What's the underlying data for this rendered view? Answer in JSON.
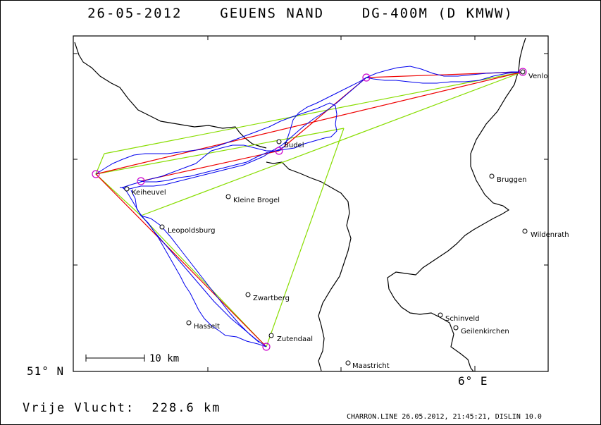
{
  "title": "26-05-2012    GEUENS NAND    DG-400M (D KMWW)",
  "axes": {
    "lat_label": "51° N",
    "lon_label": "6° E"
  },
  "scale_bar": {
    "label": "10 km"
  },
  "flight": {
    "label": "Vrije Vlucht:",
    "distance": "228.6 km"
  },
  "credit": "CHARRON.LINE 26.05.2012, 21:45:21, DISLIN 10.0",
  "places": [
    {
      "name": "Venlo"
    },
    {
      "name": "Budel"
    },
    {
      "name": "Bruggen"
    },
    {
      "name": "Keiheuvel"
    },
    {
      "name": "Kleine Brogel"
    },
    {
      "name": "Leopoldsburg"
    },
    {
      "name": "Wildenrath"
    },
    {
      "name": "Zwartberg"
    },
    {
      "name": "Schinveld"
    },
    {
      "name": "Hasselt"
    },
    {
      "name": "Geilenkirchen"
    },
    {
      "name": "Zutendaal"
    },
    {
      "name": "Maastricht"
    }
  ],
  "colors": {
    "track": "#0000ee",
    "task_red": "#ee0000",
    "task_green": "#88dd00",
    "turnpoint": "#cc00cc",
    "border": "#000000"
  }
}
